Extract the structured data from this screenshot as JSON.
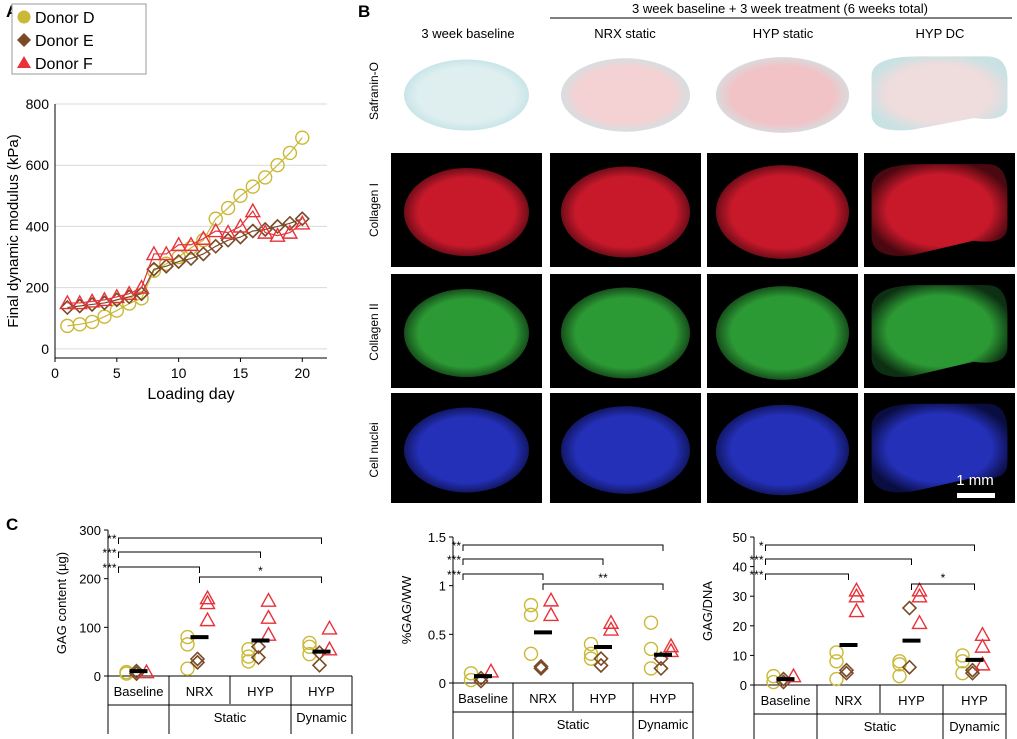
{
  "panel_labels": {
    "a": "A",
    "b": "B",
    "c": "C"
  },
  "colors": {
    "donor_d": "#c9b935",
    "donor_e": "#7a4a26",
    "donor_f": "#e8323a",
    "mean_bar": "#000000"
  },
  "panel_a": {
    "legend": [
      {
        "label": "Donor D",
        "color_key": "donor_d",
        "shape": "circle"
      },
      {
        "label": "Donor E",
        "color_key": "donor_e",
        "shape": "diamond"
      },
      {
        "label": "Donor F",
        "color_key": "donor_f",
        "shape": "triangle"
      }
    ]
  },
  "panel_b": {
    "header": "3 week baseline + 3 week treatment (6 weeks total)",
    "columns": [
      "3 week baseline",
      "NRX static",
      "HYP static",
      "HYP DC"
    ],
    "rows": [
      "Safranin-O",
      "Collagen I",
      "Collagen II",
      "Cell nuclei"
    ],
    "tile_palette": {
      "safranin": [
        "#dfeff0",
        "#f4d2d4",
        "#f1c3c6",
        "#efdcdd"
      ],
      "collagen1": "#c8192b",
      "collagen2": "#2c9a34",
      "nuclei": "#2430b8"
    },
    "scale_bar": "1 mm"
  },
  "chart_data": [
    {
      "type": "scatter",
      "panel": "A",
      "xlabel": "Loading day",
      "ylabel": "Final dynamic modulus (kPa)",
      "xlim": [
        0,
        22
      ],
      "ylim": [
        -30,
        800
      ],
      "xticks": [
        0,
        5,
        10,
        15,
        20
      ],
      "yticks": [
        0,
        200,
        400,
        600,
        800
      ],
      "series": [
        {
          "name": "Donor D",
          "color_key": "donor_d",
          "shape": "circle",
          "x": [
            1,
            2,
            3,
            4,
            5,
            6,
            7,
            8,
            9,
            10,
            11,
            12,
            13,
            14,
            15,
            16,
            17,
            18,
            19,
            20
          ],
          "y": [
            75,
            80,
            88,
            105,
            125,
            148,
            165,
            255,
            278,
            300,
            330,
            355,
            425,
            460,
            500,
            530,
            560,
            600,
            640,
            690
          ]
        },
        {
          "name": "Donor E",
          "color_key": "donor_e",
          "shape": "diamond",
          "x": [
            1,
            2,
            3,
            4,
            5,
            6,
            7,
            8,
            9,
            10,
            11,
            12,
            13,
            14,
            15,
            16,
            17,
            18,
            19,
            20
          ],
          "y": [
            135,
            140,
            145,
            150,
            160,
            170,
            180,
            260,
            270,
            285,
            295,
            310,
            335,
            355,
            365,
            385,
            390,
            400,
            410,
            425
          ]
        },
        {
          "name": "Donor F",
          "color_key": "donor_f",
          "shape": "triangle",
          "x": [
            1,
            2,
            3,
            4,
            5,
            6,
            7,
            8,
            9,
            10,
            11,
            12,
            13,
            14,
            15,
            16,
            17,
            18,
            19,
            20
          ],
          "y": [
            150,
            150,
            155,
            160,
            170,
            180,
            200,
            310,
            310,
            340,
            340,
            360,
            385,
            380,
            400,
            450,
            380,
            370,
            380,
            410
          ]
        }
      ]
    },
    {
      "type": "scatter",
      "panel": "C1",
      "ylabel": "GAG content (µg)",
      "ylim": [
        0,
        300
      ],
      "yticks": [
        0,
        100,
        200,
        300
      ],
      "ytick_labels": [
        "0",
        "100",
        "200",
        "300"
      ],
      "categories": [
        "Baseline",
        "NRX",
        "HYP",
        "HYP"
      ],
      "groups": [
        {
          "label": "Static",
          "from": 1,
          "to": 2
        },
        {
          "label": "Dynamic",
          "from": 3,
          "to": 3
        }
      ],
      "series": [
        {
          "name": "Donor D",
          "color_key": "donor_d",
          "shape": "circle",
          "points": [
            [
              0,
              5
            ],
            [
              0,
              8
            ],
            [
              1,
              15
            ],
            [
              1,
              65
            ],
            [
              1,
              80
            ],
            [
              2,
              30
            ],
            [
              2,
              40
            ],
            [
              2,
              55
            ],
            [
              3,
              45
            ],
            [
              3,
              60
            ],
            [
              3,
              68
            ]
          ]
        },
        {
          "name": "Donor E",
          "color_key": "donor_e",
          "shape": "diamond",
          "points": [
            [
              0,
              5
            ],
            [
              0,
              10
            ],
            [
              1,
              28
            ],
            [
              1,
              35
            ],
            [
              2,
              38
            ],
            [
              2,
              60
            ],
            [
              3,
              22
            ],
            [
              3,
              48
            ]
          ]
        },
        {
          "name": "Donor F",
          "color_key": "donor_f",
          "shape": "triangle",
          "points": [
            [
              0,
              8
            ],
            [
              1,
              115
            ],
            [
              1,
              150
            ],
            [
              1,
              160
            ],
            [
              2,
              85
            ],
            [
              2,
              120
            ],
            [
              2,
              155
            ],
            [
              3,
              55
            ],
            [
              3,
              98
            ]
          ]
        }
      ],
      "means": [
        10,
        80,
        73,
        50
      ],
      "significance": [
        {
          "from": 0,
          "to": 1,
          "label": "***",
          "level": 1
        },
        {
          "from": 0,
          "to": 2,
          "label": "***",
          "level": 2
        },
        {
          "from": 0,
          "to": 3,
          "label": "**",
          "level": 3
        },
        {
          "from": 1,
          "to": 3,
          "label": "*",
          "level": 0
        }
      ]
    },
    {
      "type": "scatter",
      "panel": "C2",
      "ylabel": "%GAG/WW",
      "ylim": [
        0,
        1.5
      ],
      "yticks": [
        0,
        0.5,
        1,
        1.5
      ],
      "ytick_labels": [
        "0",
        "0.5",
        "1",
        "1.5"
      ],
      "categories": [
        "Baseline",
        "NRX",
        "HYP",
        "HYP"
      ],
      "groups": [
        {
          "label": "Static",
          "from": 1,
          "to": 2
        },
        {
          "label": "Dynamic",
          "from": 3,
          "to": 3
        }
      ],
      "series": [
        {
          "name": "Donor D",
          "color_key": "donor_d",
          "shape": "circle",
          "points": [
            [
              0,
              0.03
            ],
            [
              0,
              0.1
            ],
            [
              1,
              0.3
            ],
            [
              1,
              0.7
            ],
            [
              1,
              0.8
            ],
            [
              2,
              0.25
            ],
            [
              2,
              0.3
            ],
            [
              2,
              0.4
            ],
            [
              3,
              0.15
            ],
            [
              3,
              0.35
            ],
            [
              3,
              0.62
            ]
          ]
        },
        {
          "name": "Donor E",
          "color_key": "donor_e",
          "shape": "diamond",
          "points": [
            [
              0,
              0.02
            ],
            [
              0,
              0.05
            ],
            [
              1,
              0.15
            ],
            [
              1,
              0.17
            ],
            [
              2,
              0.18
            ],
            [
              2,
              0.25
            ],
            [
              3,
              0.15
            ],
            [
              3,
              0.25
            ]
          ]
        },
        {
          "name": "Donor F",
          "color_key": "donor_f",
          "shape": "triangle",
          "points": [
            [
              0,
              0.12
            ],
            [
              1,
              0.7
            ],
            [
              1,
              0.85
            ],
            [
              2,
              0.55
            ],
            [
              2,
              0.62
            ],
            [
              3,
              0.33
            ],
            [
              3,
              0.38
            ]
          ]
        }
      ],
      "means": [
        0.07,
        0.52,
        0.37,
        0.29
      ],
      "significance": [
        {
          "from": 0,
          "to": 1,
          "label": "***",
          "level": 1
        },
        {
          "from": 0,
          "to": 2,
          "label": "***",
          "level": 2
        },
        {
          "from": 0,
          "to": 3,
          "label": "**",
          "level": 3
        },
        {
          "from": 1,
          "to": 3,
          "label": "**",
          "level": 0
        }
      ]
    },
    {
      "type": "scatter",
      "panel": "C3",
      "ylabel": "GAG/DNA",
      "ylim": [
        0,
        50
      ],
      "yticks": [
        0,
        10,
        20,
        30,
        40,
        50
      ],
      "ytick_labels": [
        "0",
        "10",
        "20",
        "30",
        "40",
        "50"
      ],
      "categories": [
        "Baseline",
        "NRX",
        "HYP",
        "HYP"
      ],
      "groups": [
        {
          "label": "Static",
          "from": 1,
          "to": 2
        },
        {
          "label": "Dynamic",
          "from": 3,
          "to": 3
        }
      ],
      "series": [
        {
          "name": "Donor D",
          "color_key": "donor_d",
          "shape": "circle",
          "points": [
            [
              0,
              1
            ],
            [
              0,
              3
            ],
            [
              1,
              2
            ],
            [
              1,
              8
            ],
            [
              1,
              11
            ],
            [
              2,
              3
            ],
            [
              2,
              7
            ],
            [
              2,
              8
            ],
            [
              3,
              4
            ],
            [
              3,
              8
            ],
            [
              3,
              10
            ]
          ]
        },
        {
          "name": "Donor E",
          "color_key": "donor_e",
          "shape": "diamond",
          "points": [
            [
              0,
              1
            ],
            [
              0,
              2
            ],
            [
              1,
              4
            ],
            [
              1,
              5
            ],
            [
              2,
              6
            ],
            [
              2,
              26
            ],
            [
              3,
              4
            ],
            [
              3,
              5
            ]
          ]
        },
        {
          "name": "Donor F",
          "color_key": "donor_f",
          "shape": "triangle",
          "points": [
            [
              0,
              3
            ],
            [
              1,
              25
            ],
            [
              1,
              30
            ],
            [
              1,
              32
            ],
            [
              2,
              21
            ],
            [
              2,
              30
            ],
            [
              2,
              32
            ],
            [
              3,
              7
            ],
            [
              3,
              13
            ],
            [
              3,
              17
            ]
          ]
        }
      ],
      "means": [
        2,
        13.5,
        15,
        8.5
      ],
      "significance": [
        {
          "from": 0,
          "to": 1,
          "label": "***",
          "level": 1
        },
        {
          "from": 0,
          "to": 2,
          "label": "***",
          "level": 2
        },
        {
          "from": 0,
          "to": 3,
          "label": "*",
          "level": 3
        },
        {
          "from": 2,
          "to": 3,
          "label": "*",
          "level": 0
        }
      ]
    }
  ]
}
